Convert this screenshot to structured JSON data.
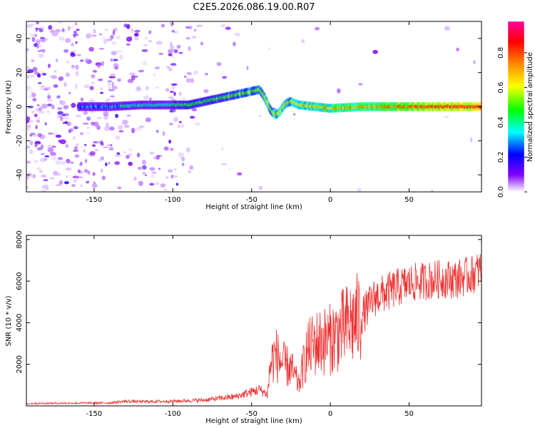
{
  "figure_title": "C2E5.2026.086.19.00.R07",
  "chart_data": [
    {
      "type": "heatmap",
      "title": "C2E5.2026.086.19.00.R07",
      "xlabel": "Height of straight line (km)",
      "ylabel": "Frequency (Hz)",
      "xlim": [
        -193,
        96
      ],
      "ylim": [
        -50,
        50
      ],
      "xticks": [
        -150,
        -100,
        -50,
        0,
        50
      ],
      "yticks": [
        -40,
        -20,
        0,
        20,
        40
      ],
      "ridge": {
        "description": "Doppler ridge center frequency vs height",
        "x": [
          -160,
          -140,
          -120,
          -100,
          -90,
          -80,
          -70,
          -60,
          -55,
          -50,
          -45,
          -42,
          -38,
          -35,
          -32,
          -30,
          -28,
          -25,
          -20,
          -10,
          0,
          20,
          40,
          60,
          80,
          95
        ],
        "y": [
          0,
          0,
          1,
          1,
          1,
          3,
          5,
          7,
          8,
          9,
          10,
          6,
          -2,
          -5,
          -3,
          0,
          2,
          3,
          1,
          0,
          -1,
          0,
          0,
          0,
          0,
          0
        ]
      },
      "colorbar": {
        "label": "Normalized spectral amplitude",
        "range": [
          0,
          0.98
        ],
        "ticks": [
          "0.0",
          "0.2",
          "0.4",
          "0.6",
          "0.8"
        ]
      }
    },
    {
      "type": "line",
      "xlabel": "Height of straight line (km)",
      "ylabel": "SNR (10 * v/v)",
      "xlim": [
        -193,
        96
      ],
      "ylim": [
        0,
        8200
      ],
      "xticks": [
        -150,
        -100,
        -50,
        0,
        50
      ],
      "yticks": [
        2000,
        4000,
        6000,
        8000
      ],
      "series": [
        {
          "name": "SNR",
          "color": "#f03030",
          "x": [
            -193,
            -180,
            -160,
            -140,
            -130,
            -120,
            -100,
            -80,
            -60,
            -50,
            -45,
            -40,
            -38,
            -35,
            -30,
            -25,
            -20,
            -15,
            -10,
            0,
            10,
            20,
            28,
            40,
            50,
            60,
            70,
            80,
            90,
            96
          ],
          "y": [
            100,
            110,
            120,
            130,
            200,
            180,
            200,
            250,
            400,
            600,
            700,
            500,
            2000,
            2500,
            2000,
            1800,
            1000,
            2600,
            3000,
            3200,
            3800,
            4300,
            5200,
            5600,
            5900,
            6000,
            6100,
            6100,
            6300,
            6600
          ]
        }
      ]
    }
  ]
}
